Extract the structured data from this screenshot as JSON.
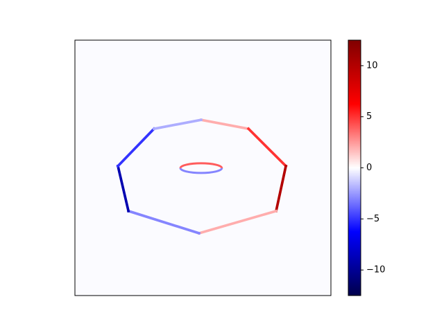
{
  "chart_data": {
    "type": "heatmap",
    "xlim": [
      0,
      100
    ],
    "ylim": [
      100,
      0
    ],
    "background_value": -0.1,
    "x": [
      49.3,
      67.8,
      82.4,
      78.6,
      48.5,
      20.9,
      16.8,
      30.9
    ],
    "y": [
      31.2,
      34.7,
      49.3,
      66.9,
      75.6,
      66.9,
      49.3,
      34.7
    ],
    "values": [
      2,
      5,
      10,
      2,
      -3,
      -9,
      -5,
      -2
    ],
    "inner_ring": {
      "cx": 49.3,
      "cy": 50.1,
      "rx": 8.1,
      "ry": 1.9,
      "values": [
        4,
        -3
      ]
    },
    "colormap": "seismic",
    "clim": [
      -12.5,
      12.5
    ],
    "cticks": [
      {
        "value": -10,
        "label": "−10"
      },
      {
        "value": -5,
        "label": "−5"
      },
      0,
      5,
      10
    ]
  }
}
